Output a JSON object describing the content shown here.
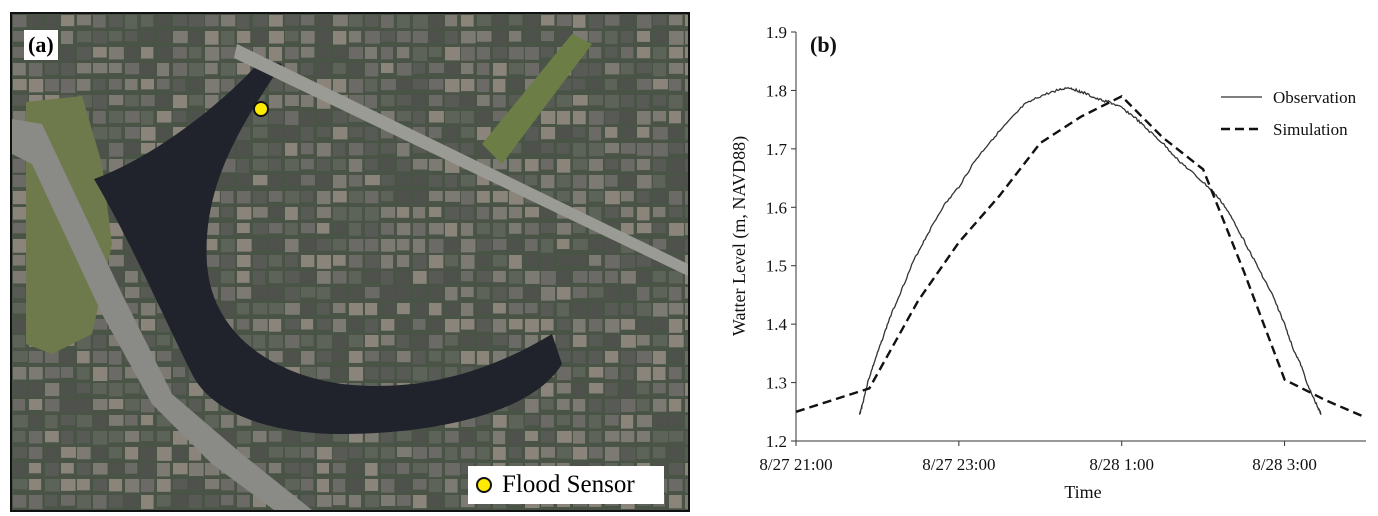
{
  "panel_a": {
    "label": "(a)",
    "legend_label": "Flood Sensor",
    "sensor_color": "#ffeb00"
  },
  "chart_data": {
    "type": "line",
    "panel_label": "(b)",
    "title": "",
    "xlabel": "Time",
    "ylabel": "Watter Level (m, NAVD88)",
    "x_ticks": [
      "8/27 21:00",
      "8/27 23:00",
      "8/28 1:00",
      "8/28 3:00"
    ],
    "x_tick_hours": [
      0,
      2,
      4,
      6
    ],
    "x_range_hours": [
      0,
      7
    ],
    "x_origin": "8/27 21:00",
    "ylim": [
      1.2,
      1.9
    ],
    "y_ticks": [
      1.2,
      1.3,
      1.4,
      1.5,
      1.6,
      1.7,
      1.8,
      1.9
    ],
    "legend_position": "top-right",
    "grid": false,
    "series": [
      {
        "name": "Observation",
        "style": "solid",
        "color": "#333333",
        "x": [
          0.78,
          0.82,
          0.88,
          0.95,
          1.05,
          1.15,
          1.3,
          1.45,
          1.6,
          1.8,
          2.0,
          2.2,
          2.4,
          2.6,
          2.8,
          3.0,
          3.2,
          3.35,
          3.45,
          3.55,
          3.7,
          3.85,
          4.0,
          4.15,
          4.3,
          4.5,
          4.7,
          4.9,
          5.1,
          5.25,
          5.4,
          5.55,
          5.7,
          5.85,
          6.0,
          6.1,
          6.2,
          6.3,
          6.4,
          6.45
        ],
        "y": [
          1.245,
          1.265,
          1.3,
          1.33,
          1.37,
          1.41,
          1.46,
          1.51,
          1.55,
          1.6,
          1.635,
          1.68,
          1.715,
          1.745,
          1.775,
          1.79,
          1.8,
          1.805,
          1.8,
          1.795,
          1.785,
          1.78,
          1.77,
          1.755,
          1.735,
          1.71,
          1.68,
          1.655,
          1.63,
          1.605,
          1.57,
          1.53,
          1.49,
          1.45,
          1.4,
          1.36,
          1.33,
          1.29,
          1.26,
          1.245
        ]
      },
      {
        "name": "Simulation",
        "style": "dashed",
        "color": "#111111",
        "x": [
          0,
          0.9,
          1.5,
          2.0,
          2.5,
          3.0,
          3.5,
          4.0,
          4.5,
          5.0,
          5.5,
          6.0,
          6.5,
          7.0
        ],
        "y": [
          1.25,
          1.29,
          1.44,
          1.54,
          1.62,
          1.71,
          1.755,
          1.79,
          1.72,
          1.665,
          1.49,
          1.305,
          1.27,
          1.24
        ]
      }
    ]
  }
}
